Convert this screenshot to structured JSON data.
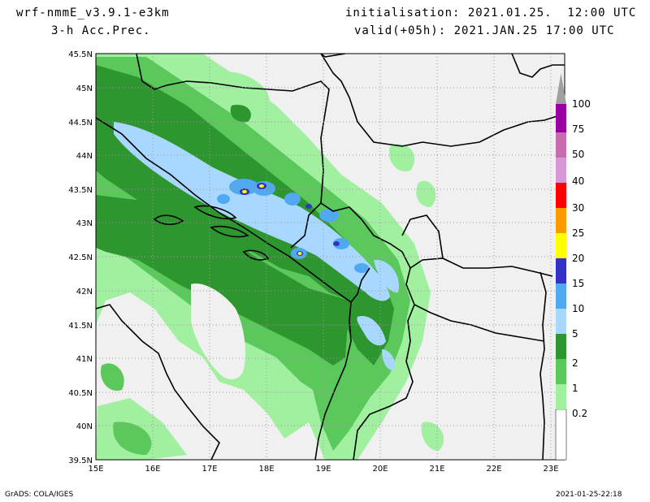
{
  "header": {
    "model": "wrf-nmmE_v3.9.1-e3km",
    "field": "3-h Acc.Prec.",
    "init": "initialisation: 2021.01.25.  12:00 UTC",
    "valid": "valid(+05h): 2021.JAN.25 17:00 UTC"
  },
  "footer": {
    "credit": "GrADS: COLA/IGES",
    "timestamp": "2021-01-25-22:18"
  },
  "map": {
    "lat_labels": [
      "45.5N",
      "45N",
      "44.5N",
      "44N",
      "43.5N",
      "43N",
      "42.5N",
      "42N",
      "41.5N",
      "41N",
      "40.5N",
      "40N",
      "39.5N"
    ],
    "lon_labels": [
      "15E",
      "16E",
      "17E",
      "18E",
      "19E",
      "20E",
      "21E",
      "22E",
      "23E"
    ],
    "lat_range": [
      39.5,
      45.5
    ],
    "lon_range": [
      15,
      23.25
    ],
    "grid": "dotted",
    "land_color": "#f0f0f0",
    "border_color": "#000000"
  },
  "legend": {
    "labels": [
      "0.2",
      "1",
      "2",
      "5",
      "10",
      "15",
      "20",
      "25",
      "30",
      "40",
      "50",
      "75",
      "100"
    ],
    "colors": [
      "#ffffff",
      "#a0f0a0",
      "#5ac85a",
      "#2e962e",
      "#a8d8ff",
      "#50a8f0",
      "#3232c8",
      "#ffff00",
      "#ff9900",
      "#ff0000",
      "#d898d8",
      "#c86cb0",
      "#9a00a0",
      "#a0a0a0"
    ],
    "placement": "right"
  }
}
